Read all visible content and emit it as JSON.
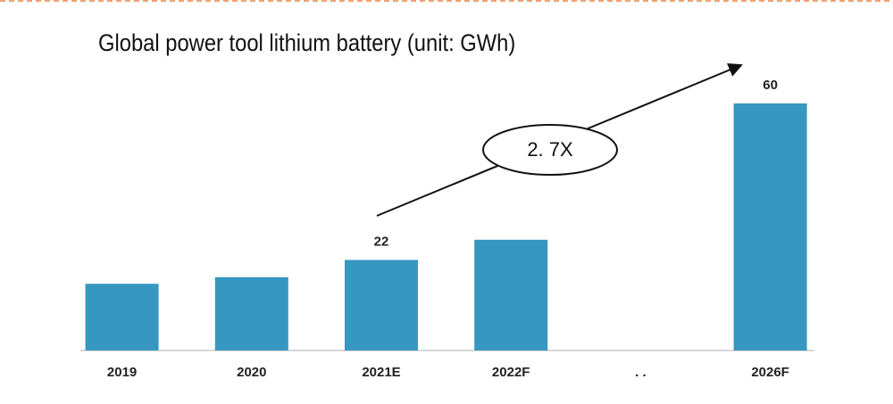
{
  "chart_data": {
    "type": "bar",
    "title": "Global power tool lithium battery (unit: GWh)",
    "categories": [
      "2019",
      "2020",
      "2021E",
      "2022F",
      ". .",
      "2026F"
    ],
    "values": [
      16.2,
      17.8,
      22,
      26.9,
      null,
      60
    ],
    "value_labels": [
      null,
      null,
      "22",
      null,
      null,
      "60"
    ],
    "color": "#3697c0",
    "ylim": [
      0,
      60
    ],
    "annotation": "2. 7X"
  }
}
